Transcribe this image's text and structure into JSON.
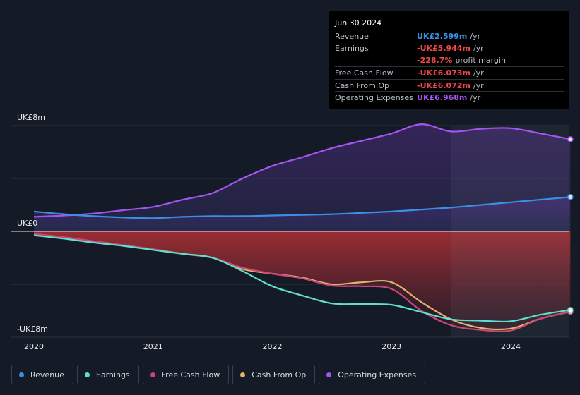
{
  "tooltip": {
    "date": "Jun 30 2024",
    "rows": [
      {
        "label": "Revenue",
        "value": "UK£2.599m",
        "unit": "/yr",
        "color": "#3b8fe6"
      },
      {
        "label": "Earnings",
        "value": "-UK£5.944m",
        "unit": "/yr",
        "color": "#f04848"
      },
      {
        "label": "",
        "value": "-228.7%",
        "unit": "profit margin",
        "color": "#f04848"
      },
      {
        "label": "Free Cash Flow",
        "value": "-UK£6.073m",
        "unit": "/yr",
        "color": "#f04848"
      },
      {
        "label": "Cash From Op",
        "value": "-UK£6.072m",
        "unit": "/yr",
        "color": "#f04848"
      },
      {
        "label": "Operating Expenses",
        "value": "UK£6.968m",
        "unit": "/yr",
        "color": "#a355f2"
      }
    ]
  },
  "chart_data": {
    "type": "area",
    "title": "",
    "xlabel": "",
    "ylabel": "",
    "y_unit": "UK£m",
    "ylim": [
      -8,
      8
    ],
    "y_tick_labels": [
      {
        "value": 8,
        "label": "UK£8m"
      },
      {
        "value": 0,
        "label": "UK£0"
      },
      {
        "value": -8,
        "label": "-UK£8m"
      }
    ],
    "x_ticks": [
      {
        "value": 2020.0,
        "label": "2020"
      },
      {
        "value": 2021.0,
        "label": "2021"
      },
      {
        "value": 2022.0,
        "label": "2022"
      },
      {
        "value": 2023.0,
        "label": "2023"
      },
      {
        "value": 2024.0,
        "label": "2024"
      }
    ],
    "xlim": [
      2019.8,
      2024.5
    ],
    "highlight_start": 2023.5,
    "series": [
      {
        "name": "Operating Expenses",
        "color": "#a355f2",
        "fill": true,
        "points": [
          [
            2020.0,
            1.1
          ],
          [
            2020.25,
            1.2
          ],
          [
            2020.5,
            1.35
          ],
          [
            2020.75,
            1.6
          ],
          [
            2021.0,
            1.85
          ],
          [
            2021.25,
            2.4
          ],
          [
            2021.5,
            2.9
          ],
          [
            2021.75,
            4.0
          ],
          [
            2022.0,
            4.95
          ],
          [
            2022.25,
            5.6
          ],
          [
            2022.5,
            6.3
          ],
          [
            2022.75,
            6.85
          ],
          [
            2023.0,
            7.4
          ],
          [
            2023.25,
            8.1
          ],
          [
            2023.5,
            7.55
          ],
          [
            2023.75,
            7.75
          ],
          [
            2024.0,
            7.8
          ],
          [
            2024.25,
            7.4
          ],
          [
            2024.5,
            6.968
          ]
        ]
      },
      {
        "name": "Revenue",
        "color": "#3b8fe6",
        "fill": true,
        "points": [
          [
            2020.0,
            1.5
          ],
          [
            2020.25,
            1.3
          ],
          [
            2020.5,
            1.15
          ],
          [
            2020.75,
            1.05
          ],
          [
            2021.0,
            1.0
          ],
          [
            2021.25,
            1.1
          ],
          [
            2021.5,
            1.15
          ],
          [
            2021.75,
            1.15
          ],
          [
            2022.0,
            1.2
          ],
          [
            2022.25,
            1.25
          ],
          [
            2022.5,
            1.3
          ],
          [
            2022.75,
            1.4
          ],
          [
            2023.0,
            1.5
          ],
          [
            2023.25,
            1.65
          ],
          [
            2023.5,
            1.8
          ],
          [
            2023.75,
            2.0
          ],
          [
            2024.0,
            2.2
          ],
          [
            2024.25,
            2.4
          ],
          [
            2024.5,
            2.599
          ]
        ]
      },
      {
        "name": "Cash From Op",
        "color": "#e8b06a",
        "fill": true,
        "points": [
          [
            2020.0,
            -0.2
          ],
          [
            2020.25,
            -0.45
          ],
          [
            2020.5,
            -0.75
          ],
          [
            2020.75,
            -1.05
          ],
          [
            2021.0,
            -1.35
          ],
          [
            2021.25,
            -1.7
          ],
          [
            2021.5,
            -2.0
          ],
          [
            2021.75,
            -2.85
          ],
          [
            2022.0,
            -3.2
          ],
          [
            2022.25,
            -3.5
          ],
          [
            2022.5,
            -4.0
          ],
          [
            2022.75,
            -3.85
          ],
          [
            2023.0,
            -3.85
          ],
          [
            2023.25,
            -5.35
          ],
          [
            2023.5,
            -6.65
          ],
          [
            2023.75,
            -7.3
          ],
          [
            2024.0,
            -7.35
          ],
          [
            2024.25,
            -6.6
          ],
          [
            2024.5,
            -6.072
          ]
        ]
      },
      {
        "name": "Free Cash Flow",
        "color": "#c9457a",
        "fill": true,
        "points": [
          [
            2020.0,
            -0.2
          ],
          [
            2020.25,
            -0.45
          ],
          [
            2020.5,
            -0.75
          ],
          [
            2020.75,
            -1.05
          ],
          [
            2021.0,
            -1.35
          ],
          [
            2021.25,
            -1.7
          ],
          [
            2021.5,
            -2.0
          ],
          [
            2021.75,
            -2.75
          ],
          [
            2022.0,
            -3.2
          ],
          [
            2022.25,
            -3.55
          ],
          [
            2022.5,
            -4.1
          ],
          [
            2022.75,
            -4.15
          ],
          [
            2023.0,
            -4.35
          ],
          [
            2023.25,
            -6.0
          ],
          [
            2023.5,
            -7.1
          ],
          [
            2023.75,
            -7.45
          ],
          [
            2024.0,
            -7.5
          ],
          [
            2024.25,
            -6.6
          ],
          [
            2024.5,
            -6.073
          ]
        ]
      },
      {
        "name": "Earnings",
        "color": "#5ee0cc",
        "fill": false,
        "points": [
          [
            2020.0,
            -0.3
          ],
          [
            2020.25,
            -0.55
          ],
          [
            2020.5,
            -0.85
          ],
          [
            2020.75,
            -1.1
          ],
          [
            2021.0,
            -1.4
          ],
          [
            2021.25,
            -1.7
          ],
          [
            2021.5,
            -2.0
          ],
          [
            2021.75,
            -3.0
          ],
          [
            2022.0,
            -4.15
          ],
          [
            2022.25,
            -4.85
          ],
          [
            2022.5,
            -5.45
          ],
          [
            2022.75,
            -5.5
          ],
          [
            2023.0,
            -5.55
          ],
          [
            2023.25,
            -6.1
          ],
          [
            2023.5,
            -6.65
          ],
          [
            2023.75,
            -6.75
          ],
          [
            2024.0,
            -6.8
          ],
          [
            2024.25,
            -6.3
          ],
          [
            2024.5,
            -5.944
          ]
        ]
      }
    ]
  },
  "legend": {
    "items": [
      {
        "label": "Revenue",
        "color": "#3b8fe6"
      },
      {
        "label": "Earnings",
        "color": "#5ee0cc"
      },
      {
        "label": "Free Cash Flow",
        "color": "#c9457a"
      },
      {
        "label": "Cash From Op",
        "color": "#e8b06a"
      },
      {
        "label": "Operating Expenses",
        "color": "#a355f2"
      }
    ]
  }
}
